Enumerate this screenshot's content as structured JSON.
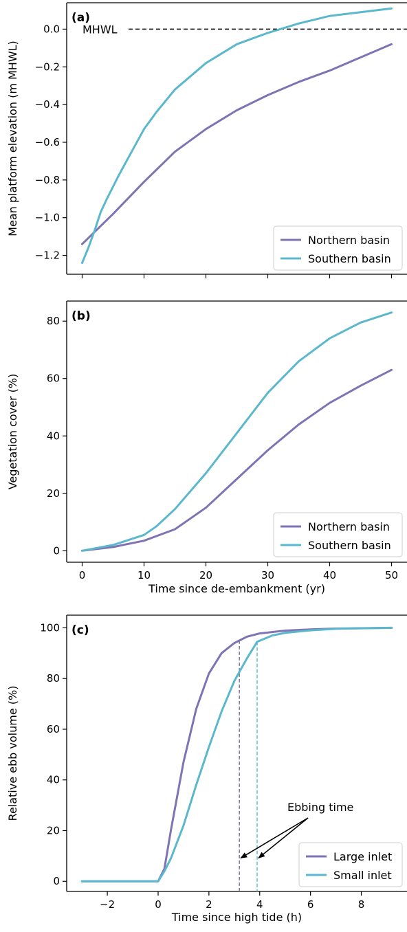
{
  "colors": {
    "northern": "#8073b4",
    "southern": "#5bb8cc",
    "axis": "#000000",
    "legend_border": "#cccccc"
  },
  "chart_data": [
    {
      "panel": "(a)",
      "type": "line",
      "xlabel": "",
      "ylabel": "Mean platform elevation (m MHWL)",
      "xlim": [
        -2.5,
        52.5
      ],
      "ylim": [
        -1.3,
        0.14
      ],
      "xticks": [
        0,
        10,
        20,
        30,
        40,
        50
      ],
      "xtick_labels": [
        "",
        "",
        "",
        "",
        "",
        ""
      ],
      "yticks": [
        -1.2,
        -1.0,
        -0.8,
        -0.6,
        -0.4,
        -0.2,
        0.0
      ],
      "ytick_labels": [
        "−1.2",
        "−1.0",
        "−0.8",
        "−0.6",
        "−0.4",
        "−0.2",
        "0.0"
      ],
      "legend": "lower-right",
      "reference_line": {
        "y": 0.0,
        "label": "MHWL",
        "style": "dashed"
      },
      "series": [
        {
          "name": "Northern basin",
          "color_key": "northern",
          "x": [
            0,
            5,
            10,
            15,
            20,
            25,
            30,
            35,
            40,
            45,
            50
          ],
          "y": [
            -1.14,
            -0.98,
            -0.81,
            -0.65,
            -0.53,
            -0.43,
            -0.35,
            -0.28,
            -0.22,
            -0.15,
            -0.08
          ]
        },
        {
          "name": "Southern basin",
          "color_key": "southern",
          "x": [
            0,
            1,
            2,
            3,
            4,
            6,
            8,
            10,
            12,
            15,
            20,
            25,
            30,
            35,
            40,
            45,
            50
          ],
          "y": [
            -1.24,
            -1.16,
            -1.07,
            -0.97,
            -0.9,
            -0.77,
            -0.65,
            -0.53,
            -0.44,
            -0.32,
            -0.18,
            -0.08,
            -0.02,
            0.03,
            0.07,
            0.09,
            0.11
          ]
        }
      ]
    },
    {
      "panel": "(b)",
      "type": "line",
      "xlabel": "Time since de-embankment (yr)",
      "ylabel": "Vegetation cover (%)",
      "xlim": [
        -2.5,
        52.5
      ],
      "ylim": [
        -4,
        87
      ],
      "xticks": [
        0,
        10,
        20,
        30,
        40,
        50
      ],
      "xtick_labels": [
        "0",
        "10",
        "20",
        "30",
        "40",
        "50"
      ],
      "yticks": [
        0,
        20,
        40,
        60,
        80
      ],
      "ytick_labels": [
        "0",
        "20",
        "40",
        "60",
        "80"
      ],
      "legend": "lower-right",
      "series": [
        {
          "name": "Northern basin",
          "color_key": "northern",
          "x": [
            0,
            5,
            10,
            15,
            20,
            25,
            30,
            35,
            40,
            45,
            50
          ],
          "y": [
            0,
            1.3,
            3.5,
            7.5,
            15,
            25,
            35,
            44,
            51.5,
            57.5,
            63
          ]
        },
        {
          "name": "Southern basin",
          "color_key": "southern",
          "x": [
            0,
            5,
            10,
            12,
            15,
            20,
            25,
            30,
            35,
            40,
            45,
            50
          ],
          "y": [
            0,
            2,
            5.5,
            8.5,
            14.5,
            27,
            41,
            55,
            66,
            74,
            79.5,
            83
          ]
        }
      ]
    },
    {
      "panel": "(c)",
      "type": "line",
      "xlabel": "Time since high tide (h)",
      "ylabel": "Relative ebb volume (%)",
      "xlim": [
        -3.6,
        9.8
      ],
      "ylim": [
        -4,
        105
      ],
      "xticks": [
        -2,
        0,
        2,
        4,
        6,
        8
      ],
      "xtick_labels": [
        "−2",
        "0",
        "2",
        "4",
        "6",
        "8"
      ],
      "yticks": [
        0,
        20,
        40,
        60,
        80,
        100
      ],
      "ytick_labels": [
        "0",
        "20",
        "40",
        "60",
        "80",
        "100"
      ],
      "legend": "lower-right",
      "annotation": {
        "text": "Ebbing time",
        "targets_x": [
          3.2,
          3.9
        ],
        "target_y": 10
      },
      "series": [
        {
          "name": "Large inlet",
          "color_key": "northern",
          "ebbing_time": 3.2,
          "x": [
            -3,
            0,
            0.25,
            0.5,
            1,
            1.5,
            2,
            2.5,
            3,
            3.2,
            3.5,
            4,
            5,
            6,
            7,
            9.2
          ],
          "y": [
            0,
            0,
            5,
            20,
            47,
            68,
            82,
            90,
            94,
            95,
            96.5,
            97.8,
            98.9,
            99.4,
            99.7,
            100
          ]
        },
        {
          "name": "Small inlet",
          "color_key": "southern",
          "ebbing_time": 3.9,
          "x": [
            -3,
            0,
            0.25,
            0.5,
            1,
            1.5,
            2,
            2.5,
            3,
            3.5,
            3.9,
            4.5,
            5,
            6,
            7,
            9.2
          ],
          "y": [
            0,
            0,
            4,
            9,
            22,
            38,
            53,
            67,
            79,
            88,
            94.5,
            97,
            98,
            99,
            99.6,
            100
          ]
        }
      ]
    }
  ]
}
